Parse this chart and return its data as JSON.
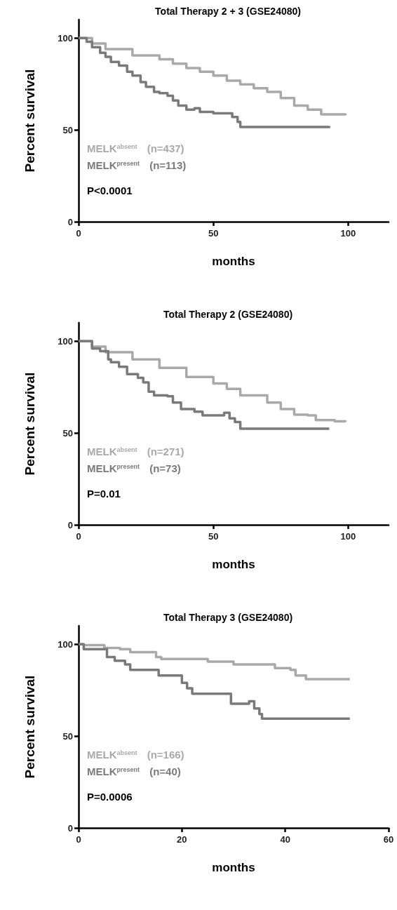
{
  "chart_data": [
    {
      "type": "step",
      "title": "Total Therapy 2 + 3 (GSE24080)",
      "xlabel": "months",
      "ylabel": "Percent survival",
      "xlim": [
        0,
        115
      ],
      "xticks": [
        0,
        50,
        100
      ],
      "ylim": [
        0,
        110
      ],
      "yticks": [
        0,
        50,
        100
      ],
      "grid": false,
      "marker": "none",
      "line_style": "solid",
      "annotations": [
        "P<0.0001"
      ],
      "series": [
        {
          "name": "MELK$^{absent}$ (n=437)",
          "color": "#a9a9a9",
          "x": [
            0,
            5,
            10,
            20,
            30,
            35,
            40,
            45,
            50,
            55,
            60,
            65,
            70,
            75,
            80,
            85,
            88,
            90,
            95,
            99
          ],
          "values": [
            100,
            97,
            94,
            90.5,
            88.4,
            86,
            83.6,
            81.6,
            79.5,
            76.8,
            74.8,
            72.7,
            70.7,
            67.3,
            63.2,
            61,
            61,
            58.4,
            58.4,
            58
          ]
        },
        {
          "name": "MELK$^{present}$ (n=113)",
          "color": "#7a7a7a",
          "x": [
            0,
            3,
            5,
            8,
            10,
            12,
            15,
            18,
            20,
            23,
            25,
            28,
            30,
            33,
            35,
            37,
            40,
            43,
            45,
            50,
            55,
            57,
            59,
            60,
            70,
            93
          ],
          "values": [
            100,
            98,
            95,
            92,
            89.8,
            87,
            85,
            81.6,
            79.5,
            76,
            73.4,
            70.7,
            70,
            68.6,
            66,
            63.2,
            61,
            61.8,
            59.8,
            59,
            59,
            57,
            54.3,
            51.6,
            51.6,
            52
          ]
        }
      ]
    },
    {
      "type": "step",
      "title": "Total Therapy 2 (GSE24080)",
      "xlabel": "months",
      "ylabel": "Percent survival",
      "xlim": [
        0,
        115
      ],
      "xticks": [
        0,
        50,
        100
      ],
      "ylim": [
        0,
        110
      ],
      "yticks": [
        0,
        50,
        100
      ],
      "grid": false,
      "marker": "none",
      "line_style": "solid",
      "annotations": [
        "P=0.01"
      ],
      "series": [
        {
          "name": "MELK$^{absent}$ (n=271)",
          "color": "#a9a9a9",
          "x": [
            0,
            5,
            10,
            20,
            30,
            40,
            50,
            55,
            60,
            70,
            75,
            80,
            85,
            88,
            95,
            99
          ],
          "values": [
            100,
            97,
            94,
            90,
            85.5,
            80.5,
            77,
            74,
            70.5,
            66.6,
            63,
            60,
            59.6,
            57,
            56.3,
            56
          ]
        },
        {
          "name": "MELK$^{present}$ (n=73)",
          "color": "#7a7a7a",
          "x": [
            0,
            5,
            8,
            11,
            12,
            15,
            18,
            22,
            24,
            26,
            28,
            33,
            35,
            38,
            43,
            46,
            53,
            54,
            56,
            58,
            60,
            93
          ],
          "values": [
            100,
            96,
            94.5,
            90,
            88.5,
            86,
            82,
            80,
            77.5,
            72.5,
            70.5,
            70,
            66.6,
            63,
            61.6,
            59.6,
            59.6,
            61,
            58,
            56,
            52.3,
            52.5
          ]
        }
      ]
    },
    {
      "type": "step",
      "title": "Total Therapy 3 (GSE24080)",
      "xlabel": "months",
      "ylabel": "Percent survival",
      "xlim": [
        0,
        60
      ],
      "xticks": [
        0,
        20,
        40,
        60
      ],
      "ylim": [
        0,
        110
      ],
      "yticks": [
        0,
        50,
        100
      ],
      "grid": false,
      "marker": "none",
      "line_style": "solid",
      "annotations": [
        "P=0.0006"
      ],
      "series": [
        {
          "name": "MELK$^{absent}$ (n=166)",
          "color": "#a9a9a9",
          "x": [
            0,
            1,
            5,
            8,
            10,
            15,
            16,
            25,
            30,
            37,
            38,
            41,
            42,
            44,
            52.5
          ],
          "values": [
            100,
            99.5,
            98,
            97.3,
            95.7,
            93,
            92,
            90.5,
            89,
            89,
            87,
            86,
            83,
            81,
            81
          ]
        },
        {
          "name": "MELK$^{present}$ (n=40)",
          "color": "#7a7a7a",
          "x": [
            0,
            1,
            5.5,
            7,
            9,
            10,
            15.5,
            20,
            21,
            22,
            29.5,
            33,
            34,
            35,
            35.5,
            52.5
          ],
          "values": [
            100,
            97.3,
            93,
            91,
            89,
            86,
            83,
            79,
            76,
            73,
            67.6,
            68.9,
            65,
            62,
            59.5,
            59.5
          ]
        }
      ]
    }
  ]
}
